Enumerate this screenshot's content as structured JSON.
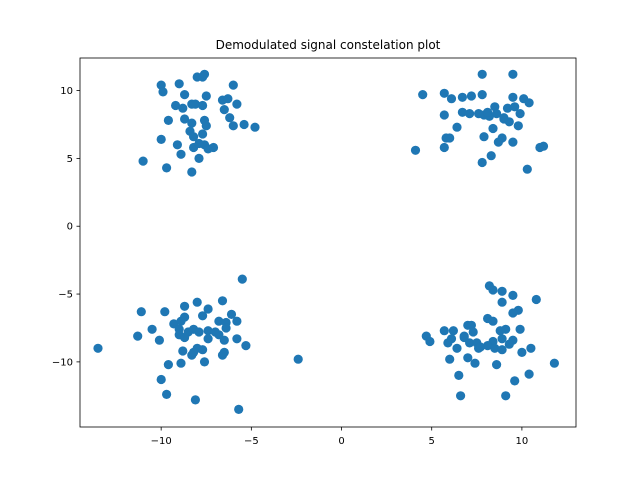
{
  "chart_data": {
    "type": "scatter",
    "title": "Demodulated signal constelation plot",
    "xlabel": "",
    "ylabel": "",
    "xlim": [
      -14.5,
      13.0
    ],
    "ylim": [
      -14.8,
      12.4
    ],
    "xticks": [
      -10,
      -5,
      0,
      5,
      10
    ],
    "yticks": [
      -10,
      -5,
      0,
      5,
      10
    ],
    "xtick_labels": [
      "−10",
      "−5",
      "0",
      "5",
      "10"
    ],
    "ytick_labels": [
      "−10",
      "−5",
      "0",
      "5",
      "10"
    ],
    "grid": false,
    "marker_color": "#1f77b4",
    "points": [
      [
        -10.0,
        10.4
      ],
      [
        -9.9,
        9.9
      ],
      [
        -9.0,
        10.5
      ],
      [
        -8.7,
        9.7
      ],
      [
        -8.0,
        11.0
      ],
      [
        -7.6,
        11.2
      ],
      [
        -6.0,
        10.4
      ],
      [
        -9.2,
        8.9
      ],
      [
        -8.8,
        8.7
      ],
      [
        -8.3,
        9.0
      ],
      [
        -8.1,
        9.0
      ],
      [
        -7.7,
        8.9
      ],
      [
        -7.5,
        9.6
      ],
      [
        -6.6,
        9.3
      ],
      [
        -6.3,
        9.4
      ],
      [
        -5.8,
        9.0
      ],
      [
        -6.5,
        8.6
      ],
      [
        -9.6,
        7.8
      ],
      [
        -8.7,
        7.9
      ],
      [
        -8.3,
        7.6
      ],
      [
        -7.6,
        7.8
      ],
      [
        -7.5,
        7.4
      ],
      [
        -8.4,
        7.0
      ],
      [
        -8.2,
        6.6
      ],
      [
        -7.7,
        6.8
      ],
      [
        -6.0,
        7.4
      ],
      [
        -5.4,
        7.5
      ],
      [
        -4.8,
        7.3
      ],
      [
        -10.0,
        6.4
      ],
      [
        -9.1,
        6.0
      ],
      [
        -8.2,
        5.8
      ],
      [
        -7.6,
        6.0
      ],
      [
        -7.4,
        5.7
      ],
      [
        -7.1,
        5.8
      ],
      [
        -8.9,
        5.3
      ],
      [
        -7.9,
        5.0
      ],
      [
        -11.0,
        4.8
      ],
      [
        -9.7,
        4.3
      ],
      [
        -8.3,
        4.0
      ],
      [
        -7.9,
        6.1
      ],
      [
        -7.7,
        11.0
      ],
      [
        -6.2,
        8.0
      ],
      [
        7.8,
        11.2
      ],
      [
        9.5,
        11.2
      ],
      [
        4.5,
        9.7
      ],
      [
        5.7,
        9.8
      ],
      [
        6.7,
        9.5
      ],
      [
        7.2,
        9.6
      ],
      [
        7.8,
        9.7
      ],
      [
        10.1,
        9.4
      ],
      [
        10.4,
        9.1
      ],
      [
        6.1,
        9.4
      ],
      [
        8.5,
        8.8
      ],
      [
        9.2,
        8.7
      ],
      [
        9.5,
        9.5
      ],
      [
        9.6,
        8.8
      ],
      [
        5.7,
        8.2
      ],
      [
        6.7,
        8.4
      ],
      [
        7.1,
        8.3
      ],
      [
        7.6,
        8.3
      ],
      [
        7.9,
        8.2
      ],
      [
        8.2,
        8.1
      ],
      [
        8.6,
        8.3
      ],
      [
        9.0,
        7.9
      ],
      [
        9.3,
        7.7
      ],
      [
        9.9,
        8.3
      ],
      [
        6.4,
        7.3
      ],
      [
        8.4,
        7.2
      ],
      [
        9.8,
        7.4
      ],
      [
        5.8,
        6.5
      ],
      [
        6.0,
        6.5
      ],
      [
        7.9,
        6.6
      ],
      [
        8.9,
        6.5
      ],
      [
        9.5,
        6.2
      ],
      [
        8.7,
        6.2
      ],
      [
        8.3,
        5.2
      ],
      [
        7.8,
        4.7
      ],
      [
        10.3,
        4.2
      ],
      [
        11.0,
        5.8
      ],
      [
        11.2,
        5.9
      ],
      [
        5.7,
        5.8
      ],
      [
        4.1,
        5.6
      ],
      [
        8.1,
        8.4
      ],
      [
        9.0,
        8.0
      ],
      [
        -5.5,
        -3.9
      ],
      [
        -11.1,
        -6.3
      ],
      [
        -9.8,
        -6.3
      ],
      [
        -8.7,
        -5.9
      ],
      [
        -8.0,
        -5.6
      ],
      [
        -6.6,
        -5.5
      ],
      [
        -7.4,
        -6.1
      ],
      [
        -6.1,
        -6.5
      ],
      [
        -9.3,
        -7.2
      ],
      [
        -8.9,
        -7.0
      ],
      [
        -8.7,
        -6.7
      ],
      [
        -8.2,
        -7.6
      ],
      [
        -7.7,
        -6.6
      ],
      [
        -6.8,
        -7.0
      ],
      [
        -6.4,
        -7.1
      ],
      [
        -5.8,
        -7.0
      ],
      [
        -10.5,
        -7.6
      ],
      [
        -9.0,
        -7.6
      ],
      [
        -8.5,
        -7.8
      ],
      [
        -7.9,
        -7.8
      ],
      [
        -7.4,
        -7.7
      ],
      [
        -7.0,
        -7.8
      ],
      [
        -6.4,
        -7.5
      ],
      [
        -11.3,
        -8.1
      ],
      [
        -10.1,
        -8.4
      ],
      [
        -9.0,
        -8.0
      ],
      [
        -8.7,
        -8.2
      ],
      [
        -7.4,
        -8.3
      ],
      [
        -6.5,
        -8.4
      ],
      [
        -5.8,
        -8.3
      ],
      [
        -5.3,
        -8.8
      ],
      [
        -8.8,
        -9.2
      ],
      [
        -8.0,
        -9.0
      ],
      [
        -7.7,
        -9.1
      ],
      [
        -6.5,
        -9.3
      ],
      [
        -6.6,
        -9.5
      ],
      [
        -8.3,
        -9.5
      ],
      [
        -9.6,
        -10.2
      ],
      [
        -8.9,
        -10.1
      ],
      [
        -7.6,
        -10.0
      ],
      [
        -13.5,
        -9.0
      ],
      [
        -10.0,
        -11.3
      ],
      [
        -9.7,
        -12.4
      ],
      [
        -8.1,
        -12.8
      ],
      [
        -5.7,
        -13.5
      ],
      [
        -2.4,
        -9.8
      ],
      [
        -8.2,
        -9.3
      ],
      [
        -6.8,
        -8.0
      ],
      [
        8.2,
        -4.4
      ],
      [
        8.4,
        -4.7
      ],
      [
        8.9,
        -4.8
      ],
      [
        9.5,
        -5.1
      ],
      [
        10.8,
        -5.4
      ],
      [
        8.9,
        -5.6
      ],
      [
        9.8,
        -6.2
      ],
      [
        9.5,
        -6.4
      ],
      [
        8.1,
        -6.8
      ],
      [
        8.4,
        -7.0
      ],
      [
        7.0,
        -7.3
      ],
      [
        7.2,
        -7.3
      ],
      [
        5.7,
        -7.7
      ],
      [
        6.2,
        -7.7
      ],
      [
        6.8,
        -8.1
      ],
      [
        7.3,
        -7.8
      ],
      [
        9.1,
        -7.6
      ],
      [
        9.9,
        -7.6
      ],
      [
        4.7,
        -8.1
      ],
      [
        4.9,
        -8.5
      ],
      [
        6.1,
        -8.3
      ],
      [
        6.8,
        -8.2
      ],
      [
        7.1,
        -8.6
      ],
      [
        7.5,
        -8.6
      ],
      [
        8.4,
        -8.5
      ],
      [
        8.9,
        -8.3
      ],
      [
        9.5,
        -8.4
      ],
      [
        5.9,
        -8.6
      ],
      [
        6.4,
        -9.0
      ],
      [
        7.6,
        -9.0
      ],
      [
        8.1,
        -8.8
      ],
      [
        8.5,
        -9.0
      ],
      [
        8.9,
        -9.1
      ],
      [
        10.0,
        -9.3
      ],
      [
        10.5,
        -9.0
      ],
      [
        6.0,
        -9.8
      ],
      [
        7.0,
        -9.7
      ],
      [
        7.4,
        -10.1
      ],
      [
        8.6,
        -10.2
      ],
      [
        10.4,
        -10.9
      ],
      [
        11.8,
        -10.1
      ],
      [
        6.5,
        -11.0
      ],
      [
        9.6,
        -11.4
      ],
      [
        6.6,
        -12.5
      ],
      [
        9.1,
        -12.5
      ],
      [
        7.7,
        -8.9
      ],
      [
        9.3,
        -8.7
      ],
      [
        8.8,
        -7.7
      ]
    ]
  }
}
